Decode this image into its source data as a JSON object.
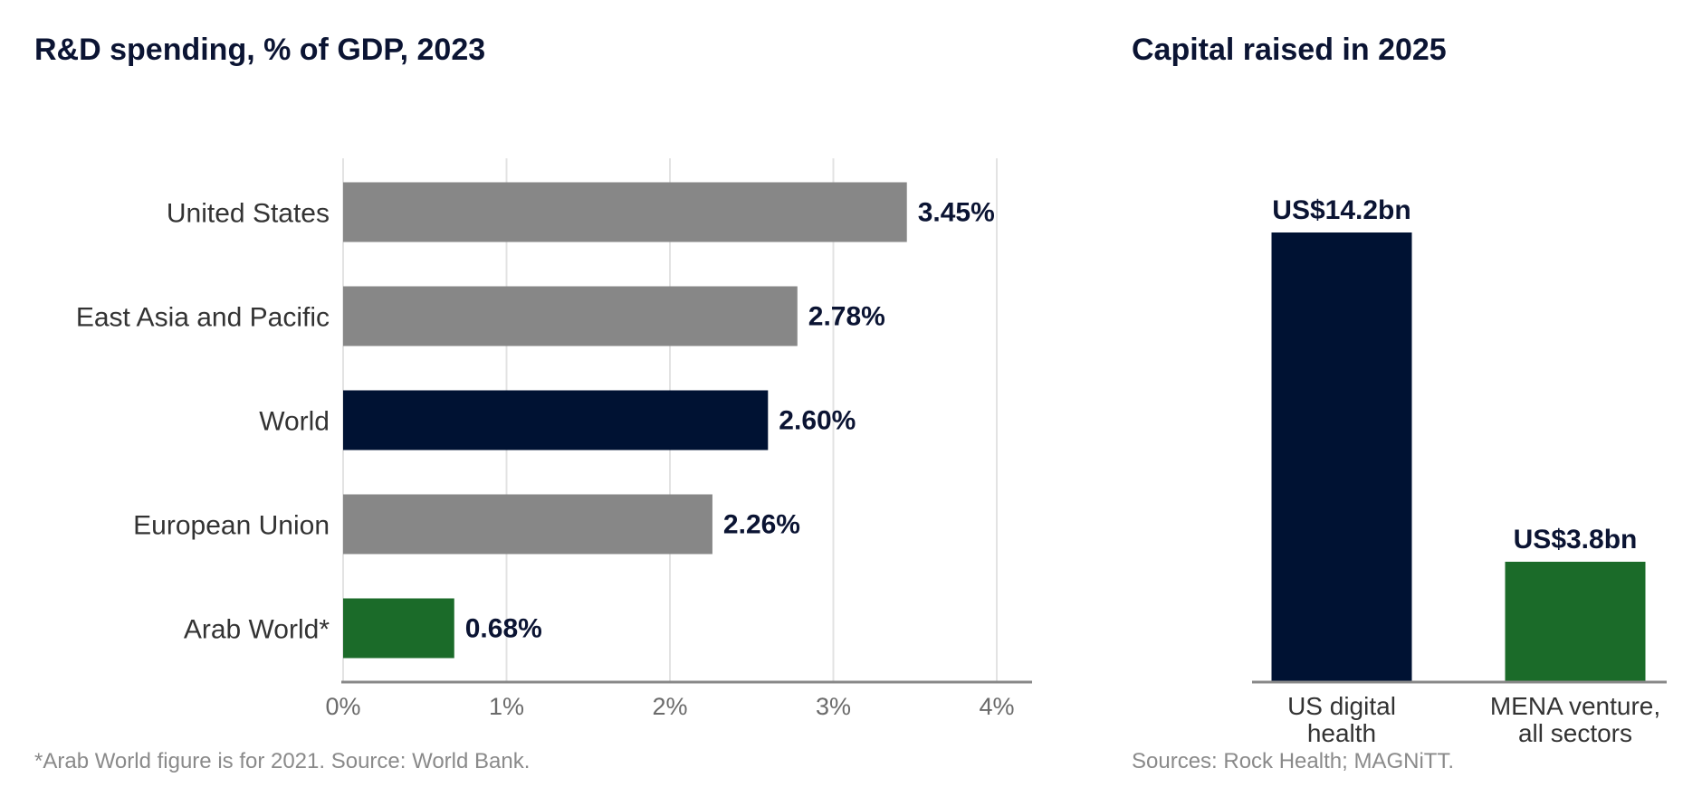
{
  "chart_data": [
    {
      "type": "bar",
      "orientation": "horizontal",
      "title": "R&D spending, % of GDP, 2023",
      "categories": [
        "United States",
        "East Asia and Pacific",
        "World",
        "European Union",
        "Arab World*"
      ],
      "values": [
        3.45,
        2.78,
        2.6,
        2.26,
        0.68
      ],
      "value_labels": [
        "3.45%",
        "2.78%",
        "2.60%",
        "2.26%",
        "0.68%"
      ],
      "colors": [
        "#878787",
        "#878787",
        "#001233",
        "#878787",
        "#1b6b29"
      ],
      "xlim": [
        0,
        4.2
      ],
      "xticks": [
        0,
        1,
        2,
        3,
        4
      ],
      "xtick_labels": [
        "0%",
        "1%",
        "2%",
        "3%",
        "4%"
      ],
      "grid": "vertical",
      "footnote": "*Arab World figure is for 2021. Source: World Bank."
    },
    {
      "type": "bar",
      "orientation": "vertical",
      "title": "Capital raised in 2025",
      "categories": [
        [
          "US digital",
          "health"
        ],
        [
          "MENA venture,",
          "all sectors"
        ]
      ],
      "values": [
        14.2,
        3.8
      ],
      "value_labels": [
        "US$14.2bn",
        "US$3.8bn"
      ],
      "colors": [
        "#001233",
        "#1b6b29"
      ],
      "ylim": [
        0,
        15.5
      ],
      "grid": "none",
      "footnote": "Sources: Rock Health; MAGNiTT."
    }
  ]
}
